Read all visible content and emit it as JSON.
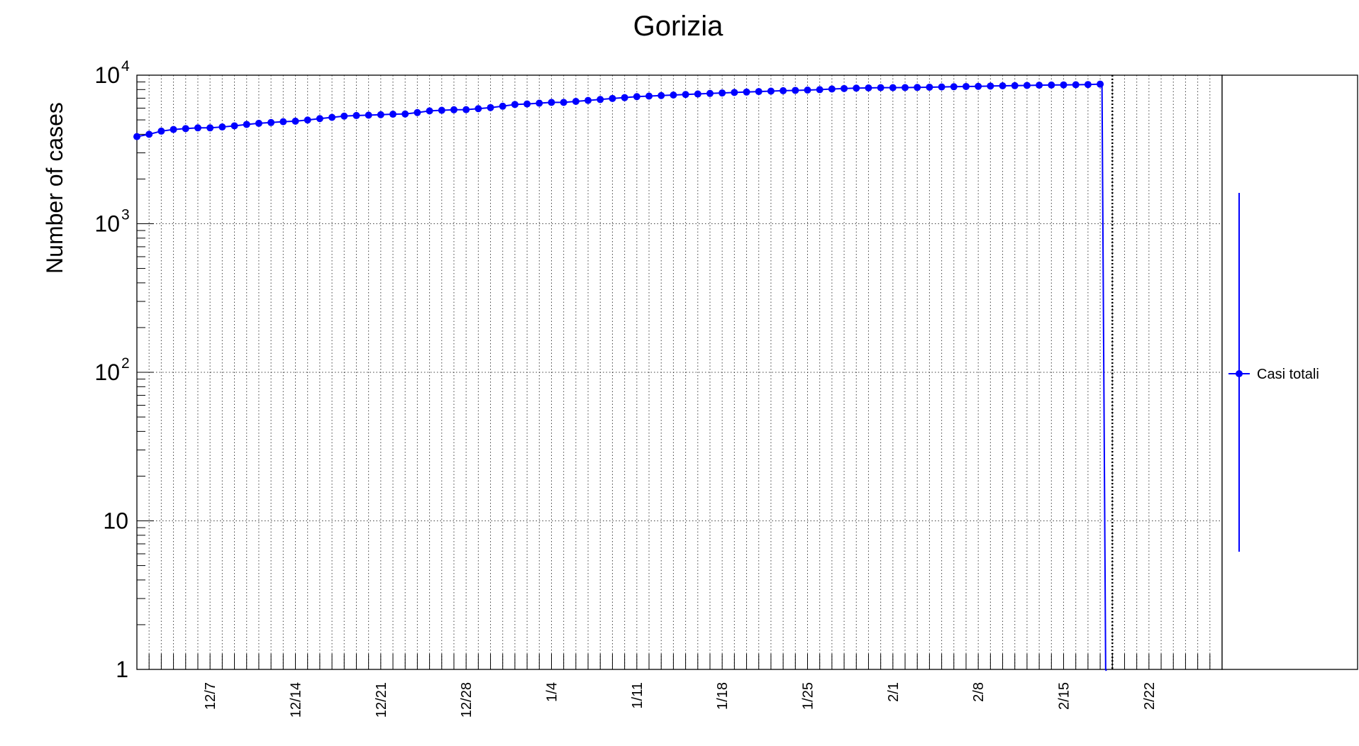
{
  "chart_data": {
    "type": "line",
    "title": "Gorizia",
    "ylabel": "Number of cases",
    "xlabel": "",
    "y_scale": "log",
    "ylim": [
      1,
      10000
    ],
    "xlim": [
      "2020-12-01",
      "2021-02-28"
    ],
    "grid": true,
    "legend_position": "right",
    "y_tick_labels": [
      {
        "value": 1,
        "base": "1",
        "exp": ""
      },
      {
        "value": 10,
        "base": "10",
        "exp": ""
      },
      {
        "value": 100,
        "base": "10",
        "exp": "2"
      },
      {
        "value": 1000,
        "base": "10",
        "exp": "3"
      },
      {
        "value": 10000,
        "base": "10",
        "exp": "4"
      }
    ],
    "x_ticks": [
      {
        "date": "2020-12-07",
        "label": "12/7"
      },
      {
        "date": "2020-12-14",
        "label": "12/14"
      },
      {
        "date": "2020-12-21",
        "label": "12/21"
      },
      {
        "date": "2020-12-28",
        "label": "12/28"
      },
      {
        "date": "2021-01-04",
        "label": "1/4"
      },
      {
        "date": "2021-01-11",
        "label": "1/11"
      },
      {
        "date": "2021-01-18",
        "label": "1/18"
      },
      {
        "date": "2021-01-25",
        "label": "1/25"
      },
      {
        "date": "2021-02-01",
        "label": "2/1"
      },
      {
        "date": "2021-02-08",
        "label": "2/8"
      },
      {
        "date": "2021-02-15",
        "label": "2/15"
      },
      {
        "date": "2021-02-22",
        "label": "2/22"
      }
    ],
    "marker_date": "2021-02-19",
    "series": [
      {
        "name": "Casi totali",
        "color": "#0000ff",
        "x": [
          "2020-12-01",
          "2020-12-02",
          "2020-12-03",
          "2020-12-04",
          "2020-12-05",
          "2020-12-06",
          "2020-12-07",
          "2020-12-08",
          "2020-12-09",
          "2020-12-10",
          "2020-12-11",
          "2020-12-12",
          "2020-12-13",
          "2020-12-14",
          "2020-12-15",
          "2020-12-16",
          "2020-12-17",
          "2020-12-18",
          "2020-12-19",
          "2020-12-20",
          "2020-12-21",
          "2020-12-22",
          "2020-12-23",
          "2020-12-24",
          "2020-12-25",
          "2020-12-26",
          "2020-12-27",
          "2020-12-28",
          "2020-12-29",
          "2020-12-30",
          "2020-12-31",
          "2021-01-01",
          "2021-01-02",
          "2021-01-03",
          "2021-01-04",
          "2021-01-05",
          "2021-01-06",
          "2021-01-07",
          "2021-01-08",
          "2021-01-09",
          "2021-01-10",
          "2021-01-11",
          "2021-01-12",
          "2021-01-13",
          "2021-01-14",
          "2021-01-15",
          "2021-01-16",
          "2021-01-17",
          "2021-01-18",
          "2021-01-19",
          "2021-01-20",
          "2021-01-21",
          "2021-01-22",
          "2021-01-23",
          "2021-01-24",
          "2021-01-25",
          "2021-01-26",
          "2021-01-27",
          "2021-01-28",
          "2021-01-29",
          "2021-01-30",
          "2021-01-31",
          "2021-02-01",
          "2021-02-02",
          "2021-02-03",
          "2021-02-04",
          "2021-02-05",
          "2021-02-06",
          "2021-02-07",
          "2021-02-08",
          "2021-02-09",
          "2021-02-10",
          "2021-02-11",
          "2021-02-12",
          "2021-02-13",
          "2021-02-14",
          "2021-02-15",
          "2021-02-16",
          "2021-02-17",
          "2021-02-18"
        ],
        "y": [
          3860,
          4000,
          4200,
          4310,
          4370,
          4420,
          4420,
          4480,
          4560,
          4660,
          4740,
          4800,
          4860,
          4900,
          4990,
          5100,
          5200,
          5300,
          5350,
          5380,
          5420,
          5460,
          5480,
          5600,
          5750,
          5800,
          5850,
          5860,
          5950,
          6050,
          6180,
          6350,
          6400,
          6480,
          6560,
          6560,
          6660,
          6760,
          6860,
          6970,
          7060,
          7170,
          7230,
          7290,
          7350,
          7410,
          7470,
          7530,
          7590,
          7650,
          7700,
          7760,
          7810,
          7860,
          7900,
          7940,
          7990,
          8070,
          8130,
          8180,
          8210,
          8240,
          8240,
          8250,
          8270,
          8300,
          8330,
          8360,
          8390,
          8410,
          8450,
          8480,
          8500,
          8530,
          8560,
          8580,
          8600,
          8620,
          8650,
          8700
        ]
      }
    ]
  }
}
